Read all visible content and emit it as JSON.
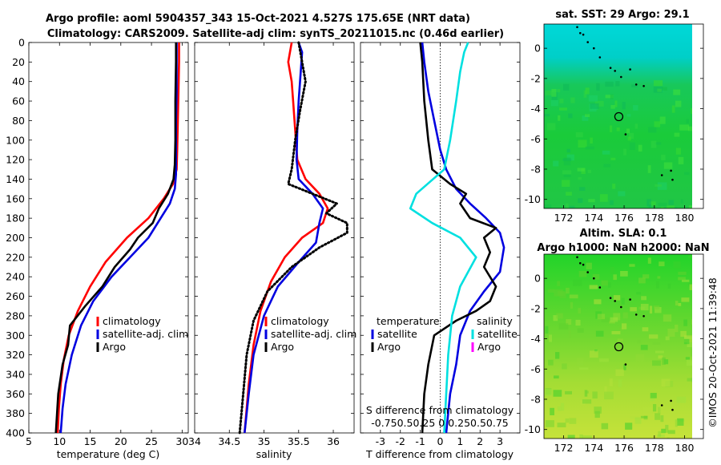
{
  "header": {
    "title_line1": "Argo profile: aoml 5904357_343 15-Oct-2021 4.527S 175.65E (NRT data)",
    "title_line2": "Climatology: CARS2009. Satellite-adj clim: synTS_20211015.nc (0.46d earlier)"
  },
  "maps": {
    "sst_title": "sat. SST: 29 Argo: 29.1",
    "sla_title_line1": "Altim. SLA: 0.1",
    "sla_title_line2": "Argo h1000: NaN h2000: NaN",
    "x_ticks": [
      172,
      174,
      176,
      178,
      180
    ],
    "y_ticks": [
      0,
      -2,
      -4,
      -6,
      -8,
      -10
    ],
    "xlim": [
      170.7,
      180.5
    ],
    "ylim": [
      -10.6,
      1.6
    ],
    "argo_lon": 175.65,
    "argo_lat": -4.527,
    "islands": [
      [
        172.9,
        1.4
      ],
      [
        173.1,
        1.0
      ],
      [
        173.3,
        0.9
      ],
      [
        173.6,
        0.4
      ],
      [
        174.0,
        0.0
      ],
      [
        174.4,
        -0.6
      ],
      [
        175.1,
        -1.3
      ],
      [
        175.4,
        -1.5
      ],
      [
        175.8,
        -1.9
      ],
      [
        176.4,
        -1.4
      ],
      [
        176.8,
        -2.4
      ],
      [
        177.3,
        -2.5
      ],
      [
        178.5,
        -8.4
      ],
      [
        179.1,
        -8.1
      ],
      [
        179.2,
        -8.7
      ],
      [
        176.1,
        -5.7
      ]
    ],
    "copyright": "©IMOS 20-Oct-2021 11:39:48",
    "colors": {
      "sst_top": "#00d8d8",
      "sst_mid": "#1acb3a",
      "sla_top": "#22d42a",
      "sla_bottom": "#c6e23a"
    }
  },
  "chart_data": [
    {
      "type": "line",
      "xlabel": "temperature (deg C)",
      "xlim": [
        5,
        31
      ],
      "x_ticks": [
        5,
        10,
        15,
        20,
        25,
        30
      ],
      "ylim": [
        0,
        400
      ],
      "y_ticks": [
        0,
        20,
        40,
        60,
        80,
        100,
        120,
        140,
        160,
        180,
        200,
        220,
        240,
        260,
        280,
        300,
        320,
        340,
        360,
        380,
        400
      ],
      "legend": [
        "climatology",
        "satellite-adj. clim",
        "Argo"
      ],
      "series": [
        {
          "name": "climatology",
          "color": "#ff0000",
          "style": "solid",
          "points": [
            [
              29.5,
              0
            ],
            [
              29.5,
              20
            ],
            [
              29.4,
              50
            ],
            [
              29.3,
              80
            ],
            [
              29.2,
              110
            ],
            [
              29.1,
              130
            ],
            [
              28.5,
              145
            ],
            [
              27.0,
              160
            ],
            [
              24.5,
              180
            ],
            [
              21.0,
              200
            ],
            [
              17.5,
              225
            ],
            [
              15.0,
              250
            ],
            [
              13.0,
              275
            ],
            [
              11.5,
              300
            ],
            [
              10.7,
              325
            ],
            [
              10.2,
              350
            ],
            [
              9.9,
              375
            ],
            [
              9.7,
              400
            ]
          ]
        },
        {
          "name": "satellite-adj. clim",
          "color": "#0000e0",
          "style": "solid",
          "points": [
            [
              29.1,
              0
            ],
            [
              29.1,
              20
            ],
            [
              29.1,
              50
            ],
            [
              29.0,
              80
            ],
            [
              29.0,
              110
            ],
            [
              29.0,
              135
            ],
            [
              28.8,
              150
            ],
            [
              28.0,
              165
            ],
            [
              26.5,
              180
            ],
            [
              24.5,
              200
            ],
            [
              21.5,
              220
            ],
            [
              18.5,
              240
            ],
            [
              15.5,
              265
            ],
            [
              13.5,
              290
            ],
            [
              12.0,
              320
            ],
            [
              11.0,
              350
            ],
            [
              10.5,
              375
            ],
            [
              10.2,
              400
            ]
          ]
        },
        {
          "name": "Argo",
          "color": "#000000",
          "style": "solid",
          "points": [
            [
              29.0,
              0
            ],
            [
              29.0,
              20
            ],
            [
              28.9,
              60
            ],
            [
              28.9,
              100
            ],
            [
              28.8,
              125
            ],
            [
              28.6,
              140
            ],
            [
              27.7,
              155
            ],
            [
              26.2,
              170
            ],
            [
              25.2,
              185
            ],
            [
              22.8,
              200
            ],
            [
              21.5,
              212
            ],
            [
              19.0,
              230
            ],
            [
              17.0,
              250
            ],
            [
              14.2,
              270
            ],
            [
              11.7,
              290
            ],
            [
              11.4,
              310
            ],
            [
              10.5,
              330
            ],
            [
              9.8,
              360
            ],
            [
              9.6,
              380
            ],
            [
              9.4,
              400
            ]
          ]
        }
      ]
    },
    {
      "type": "line",
      "xlabel": "salinity",
      "xlim": [
        34.0,
        36.3
      ],
      "x_ticks": [
        34,
        34.5,
        35,
        35.5,
        36
      ],
      "ylim": [
        0,
        400
      ],
      "legend": [
        "climatology",
        "satellite-adj. clim",
        "Argo"
      ],
      "series": [
        {
          "name": "climatology",
          "color": "#ff0000",
          "style": "solid",
          "points": [
            [
              35.4,
              0
            ],
            [
              35.35,
              20
            ],
            [
              35.4,
              40
            ],
            [
              35.42,
              60
            ],
            [
              35.45,
              90
            ],
            [
              35.48,
              120
            ],
            [
              35.6,
              140
            ],
            [
              35.8,
              155
            ],
            [
              35.92,
              170
            ],
            [
              35.85,
              185
            ],
            [
              35.55,
              200
            ],
            [
              35.3,
              220
            ],
            [
              35.1,
              245
            ],
            [
              34.95,
              275
            ],
            [
              34.85,
              310
            ],
            [
              34.78,
              350
            ],
            [
              34.72,
              400
            ]
          ]
        },
        {
          "name": "satellite-adj. clim",
          "color": "#0000e0",
          "style": "solid",
          "points": [
            [
              35.5,
              0
            ],
            [
              35.55,
              10
            ],
            [
              35.53,
              30
            ],
            [
              35.5,
              60
            ],
            [
              35.48,
              90
            ],
            [
              35.47,
              120
            ],
            [
              35.5,
              140
            ],
            [
              35.7,
              155
            ],
            [
              35.85,
              170
            ],
            [
              35.8,
              185
            ],
            [
              35.75,
              205
            ],
            [
              35.5,
              225
            ],
            [
              35.2,
              250
            ],
            [
              35.0,
              280
            ],
            [
              34.85,
              320
            ],
            [
              34.78,
              360
            ],
            [
              34.72,
              400
            ]
          ]
        },
        {
          "name": "Argo",
          "color": "#000000",
          "style": "dotted",
          "points": [
            [
              35.5,
              0
            ],
            [
              35.55,
              20
            ],
            [
              35.6,
              40
            ],
            [
              35.52,
              70
            ],
            [
              35.45,
              100
            ],
            [
              35.4,
              130
            ],
            [
              35.35,
              145
            ],
            [
              35.7,
              155
            ],
            [
              36.05,
              165
            ],
            [
              35.9,
              175
            ],
            [
              36.2,
              185
            ],
            [
              36.2,
              195
            ],
            [
              35.8,
              210
            ],
            [
              35.4,
              230
            ],
            [
              35.05,
              255
            ],
            [
              34.85,
              285
            ],
            [
              34.75,
              320
            ],
            [
              34.7,
              360
            ],
            [
              34.65,
              400
            ]
          ]
        }
      ]
    },
    {
      "type": "line",
      "xlabel": "T difference from climatology",
      "xlim": [
        -4,
        4
      ],
      "x_ticks": [
        -3,
        -2,
        -1,
        0,
        1,
        2,
        3
      ],
      "top_axis_label": "S difference from climatology",
      "top_tick_labels": "-0.75 -0.5 -0.25 0 0.25 0.5 0.75",
      "top_tick_labels_rendered": "-0.750.50.25 0 0.250.50.75",
      "ylim": [
        0,
        400
      ],
      "legend_temperature": {
        "heading": "temperature",
        "items": [
          "satellite",
          "Argo"
        ]
      },
      "legend_salinity": {
        "heading": "salinity",
        "items": [
          "satellite",
          "Argo"
        ]
      },
      "series": [
        {
          "name": "T satellite",
          "color": "#0000e0",
          "style": "solid",
          "points": [
            [
              -0.9,
              0
            ],
            [
              -0.8,
              20
            ],
            [
              -0.6,
              50
            ],
            [
              -0.3,
              80
            ],
            [
              0.0,
              110
            ],
            [
              0.3,
              130
            ],
            [
              0.8,
              150
            ],
            [
              1.5,
              165
            ],
            [
              2.3,
              180
            ],
            [
              3.0,
              195
            ],
            [
              3.2,
              210
            ],
            [
              3.0,
              235
            ],
            [
              2.2,
              255
            ],
            [
              1.5,
              275
            ],
            [
              1.0,
              300
            ],
            [
              0.8,
              330
            ],
            [
              0.5,
              360
            ],
            [
              0.3,
              400
            ]
          ]
        },
        {
          "name": "T Argo",
          "color": "#000000",
          "style": "solid",
          "points": [
            [
              -1.0,
              0
            ],
            [
              -0.9,
              20
            ],
            [
              -0.8,
              60
            ],
            [
              -0.6,
              100
            ],
            [
              -0.4,
              130
            ],
            [
              0.5,
              145
            ],
            [
              1.3,
              155
            ],
            [
              1.0,
              165
            ],
            [
              1.5,
              180
            ],
            [
              2.8,
              190
            ],
            [
              2.2,
              200
            ],
            [
              2.5,
              215
            ],
            [
              2.2,
              230
            ],
            [
              2.8,
              250
            ],
            [
              2.5,
              265
            ],
            [
              1.8,
              275
            ],
            [
              0.8,
              285
            ],
            [
              -0.3,
              300
            ],
            [
              -0.6,
              330
            ],
            [
              -0.8,
              360
            ],
            [
              -0.9,
              400
            ]
          ]
        },
        {
          "name": "S satellite",
          "color": "#00e0e0",
          "style": "solid",
          "points": [
            [
              1.4,
              0
            ],
            [
              1.2,
              10
            ],
            [
              1.0,
              30
            ],
            [
              0.8,
              60
            ],
            [
              0.5,
              100
            ],
            [
              0.2,
              130
            ],
            [
              -1.2,
              155
            ],
            [
              -1.5,
              170
            ],
            [
              -0.4,
              185
            ],
            [
              1.0,
              200
            ],
            [
              1.8,
              220
            ],
            [
              1.0,
              250
            ],
            [
              0.6,
              280
            ],
            [
              0.4,
              320
            ],
            [
              0.3,
              360
            ],
            [
              0.2,
              400
            ]
          ]
        }
      ]
    }
  ]
}
